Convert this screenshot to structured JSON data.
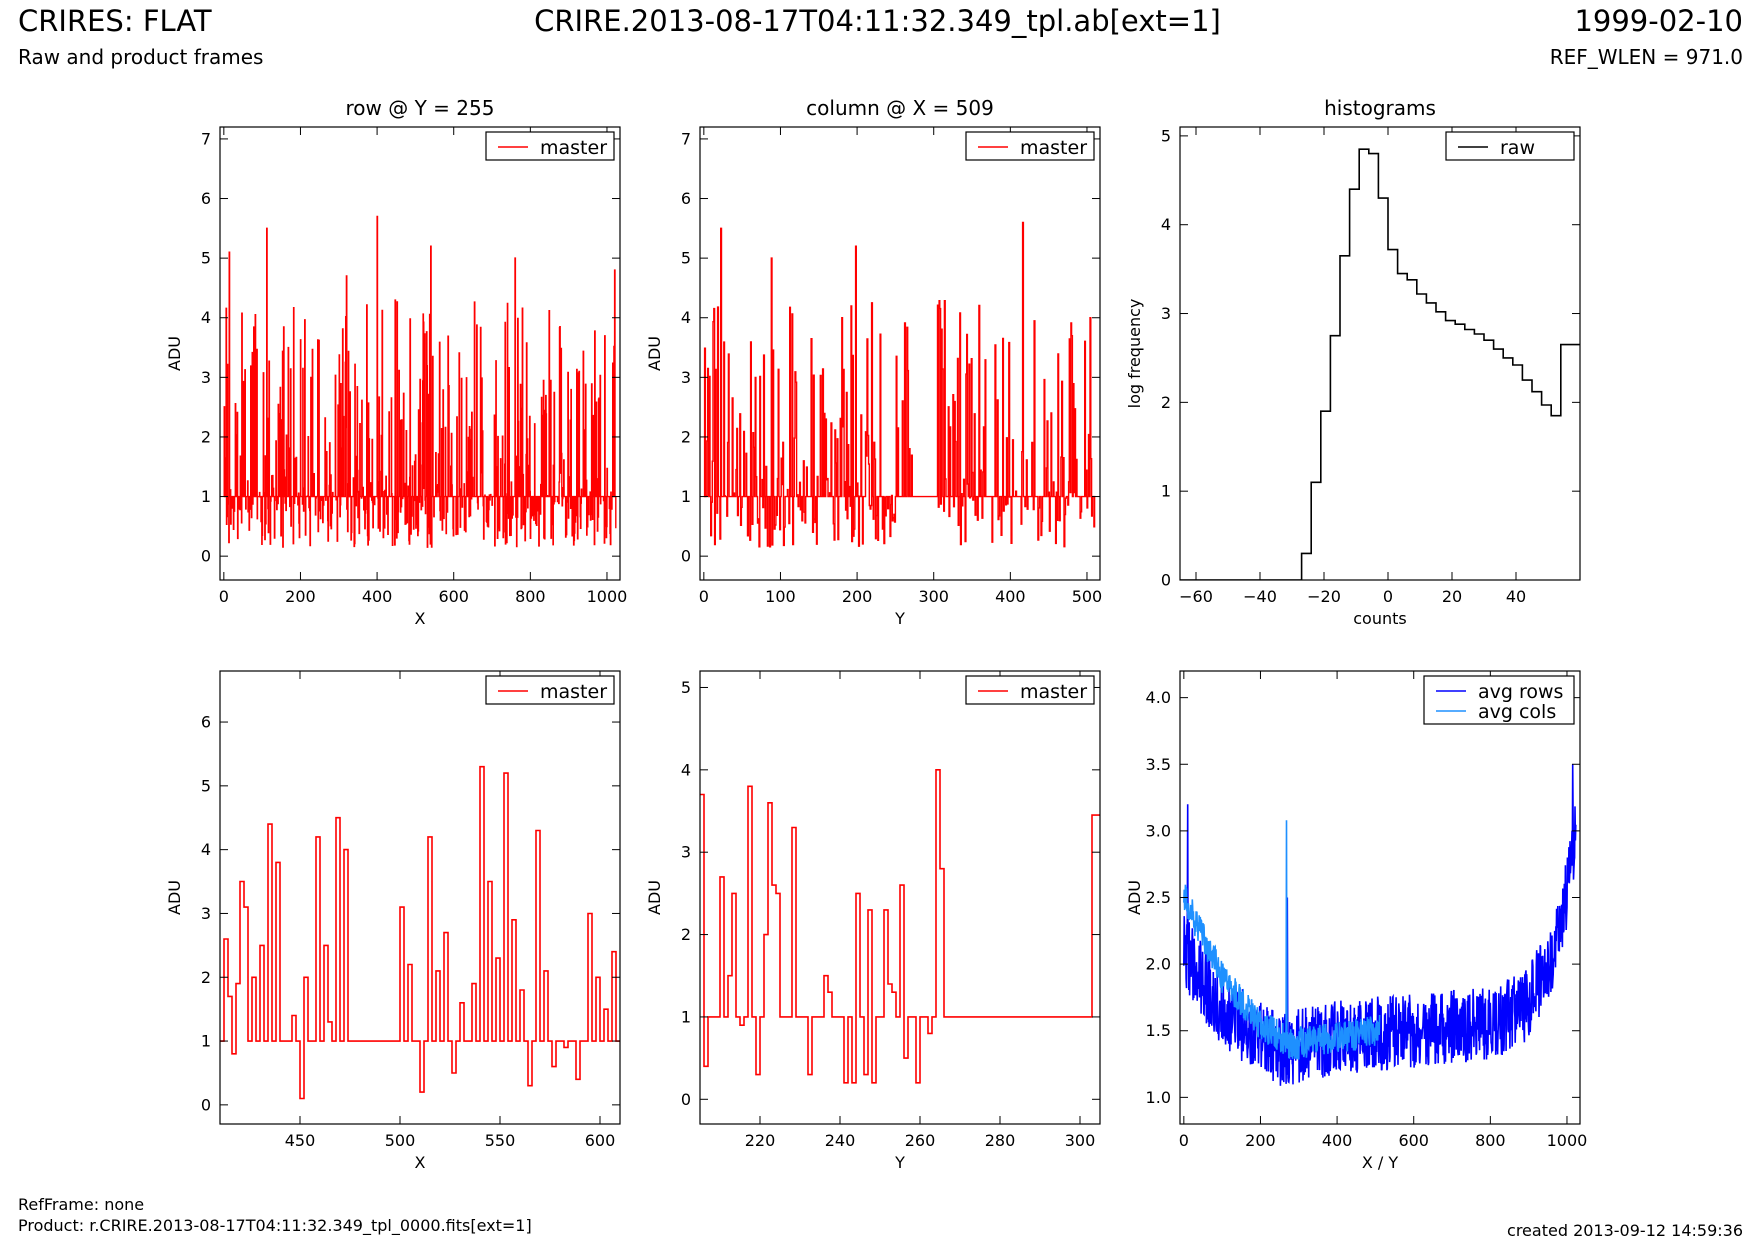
{
  "header": {
    "title_left": "CRIRES: FLAT",
    "subtitle_left": "Raw and product frames",
    "title_center": "CRIRE.2013-08-17T04:11:32.349_tpl.ab[ext=1]",
    "title_right": "1999-02-10",
    "subtitle_right": "REF_WLEN = 971.0"
  },
  "footer": {
    "refframe": "RefFrame: none",
    "product": "Product: r.CRIRE.2013-08-17T04:11:32.349_tpl_0000.fits[ext=1]",
    "created": "created 2013-09-12 14:59:36"
  },
  "colors": {
    "red": "#ff0000",
    "black": "#000000",
    "blue": "#0000ff",
    "lightblue": "#1e90ff"
  },
  "chart_data": [
    {
      "id": "row",
      "type": "line",
      "title": "row @ Y = 255",
      "xlabel": "X",
      "ylabel": "ADU",
      "xlim": [
        -10,
        1034
      ],
      "ylim": [
        -0.4,
        7.2
      ],
      "xticks": [
        0,
        200,
        400,
        600,
        800,
        1000
      ],
      "yticks": [
        0,
        1,
        2,
        3,
        4,
        5,
        6,
        7
      ],
      "legend": "top-right",
      "series": [
        {
          "name": "master",
          "color": "#ff0000",
          "style": "noise",
          "n": 1024,
          "x0": 0,
          "x1": 1023,
          "base": 1.0,
          "spikes": [
            [
              14,
              5.1
            ],
            [
              112,
              5.5
            ],
            [
              400,
              5.7
            ],
            [
              540,
              5.2
            ],
            [
              1020,
              4.8
            ],
            [
              760,
              5.0
            ],
            [
              320,
              4.7
            ]
          ]
        }
      ]
    },
    {
      "id": "column",
      "type": "line",
      "title": "column @ X = 509",
      "xlabel": "Y",
      "ylabel": "ADU",
      "xlim": [
        -5,
        517
      ],
      "ylim": [
        -0.4,
        7.2
      ],
      "xticks": [
        0,
        100,
        200,
        300,
        400,
        500
      ],
      "yticks": [
        0,
        1,
        2,
        3,
        4,
        5,
        6,
        7
      ],
      "legend": "top-right",
      "series": [
        {
          "name": "master",
          "color": "#ff0000",
          "style": "noise",
          "n": 512,
          "x0": 0,
          "x1": 511,
          "base": 1.0,
          "gaps": [
            [
              272,
              303
            ]
          ],
          "spikes": [
            [
              22,
              5.5
            ],
            [
              88,
              5.0
            ],
            [
              198,
              5.2
            ],
            [
              416,
              5.6
            ],
            [
              504,
              4.0
            ]
          ]
        }
      ]
    },
    {
      "id": "histograms",
      "type": "line",
      "title": "histograms",
      "xlabel": "counts",
      "ylabel": "log frequency",
      "xlim": [
        -65,
        60
      ],
      "ylim": [
        0,
        5.1
      ],
      "xticks": [
        -60,
        -40,
        -20,
        0,
        20,
        40
      ],
      "yticks": [
        0,
        1,
        2,
        3,
        4,
        5
      ],
      "legend": "top-right",
      "series": [
        {
          "name": "raw",
          "color": "#000000",
          "style": "step",
          "x": [
            -65,
            -27,
            -24,
            -21,
            -18,
            -15,
            -12,
            -9,
            -6,
            -3,
            0,
            3,
            6,
            9,
            12,
            15,
            18,
            21,
            24,
            27,
            30,
            33,
            36,
            39,
            42,
            45,
            48,
            51,
            54,
            57,
            60
          ],
          "y": [
            0,
            0.3,
            1.1,
            1.9,
            2.75,
            3.65,
            4.4,
            4.85,
            4.8,
            4.3,
            3.72,
            3.45,
            3.38,
            3.22,
            3.12,
            3.02,
            2.92,
            2.88,
            2.82,
            2.77,
            2.7,
            2.6,
            2.5,
            2.42,
            2.25,
            2.12,
            1.97,
            1.85,
            2.65,
            2.65,
            2.65
          ]
        }
      ]
    },
    {
      "id": "row-zoom",
      "type": "line",
      "title": "",
      "xlabel": "X",
      "ylabel": "ADU",
      "xlim": [
        410,
        610
      ],
      "ylim": [
        -0.3,
        6.8
      ],
      "xticks": [
        450,
        500,
        550,
        600
      ],
      "yticks": [
        0,
        1,
        2,
        3,
        4,
        5,
        6
      ],
      "legend": "top-right",
      "series": [
        {
          "name": "master",
          "color": "#ff0000",
          "style": "step",
          "x": [
            410,
            412,
            414,
            416,
            418,
            420,
            422,
            424,
            426,
            428,
            430,
            432,
            434,
            436,
            438,
            440,
            442,
            444,
            446,
            448,
            450,
            452,
            454,
            456,
            458,
            460,
            462,
            464,
            466,
            468,
            470,
            472,
            474,
            476,
            478,
            480,
            482,
            484,
            486,
            488,
            490,
            492,
            494,
            496,
            498,
            500,
            502,
            504,
            506,
            508,
            510,
            512,
            514,
            516,
            518,
            520,
            522,
            524,
            526,
            528,
            530,
            532,
            534,
            536,
            538,
            540,
            542,
            544,
            546,
            548,
            550,
            552,
            554,
            556,
            558,
            560,
            562,
            564,
            566,
            568,
            570,
            572,
            574,
            576,
            578,
            580,
            582,
            584,
            586,
            588,
            590,
            592,
            594,
            596,
            598,
            600,
            602,
            604,
            606,
            608
          ],
          "y": [
            1.0,
            2.6,
            1.7,
            0.8,
            1.9,
            3.5,
            3.1,
            1.0,
            2.0,
            1.0,
            2.5,
            1.0,
            4.4,
            1.0,
            3.8,
            1.0,
            1.0,
            1.0,
            1.4,
            1.0,
            0.1,
            2.0,
            1.0,
            1.0,
            4.2,
            1.0,
            2.5,
            1.3,
            1.0,
            4.5,
            1.0,
            4.0,
            1.0,
            1.0,
            1.0,
            1.0,
            1.0,
            1.0,
            1.0,
            1.0,
            1.0,
            1.0,
            1.0,
            1.0,
            1.0,
            3.1,
            1.0,
            2.2,
            1.0,
            1.0,
            0.2,
            1.0,
            4.2,
            1.0,
            2.1,
            1.0,
            2.7,
            1.0,
            0.5,
            1.0,
            1.6,
            1.0,
            1.0,
            1.9,
            1.0,
            5.3,
            1.0,
            3.5,
            1.0,
            2.3,
            1.0,
            5.2,
            1.0,
            2.9,
            1.0,
            1.8,
            1.0,
            0.3,
            1.0,
            4.3,
            1.0,
            2.1,
            1.0,
            0.6,
            1.0,
            1.0,
            0.9,
            1.0,
            1.0,
            0.4,
            1.0,
            1.0,
            3.0,
            1.0,
            2.0,
            1.0,
            1.5,
            1.0,
            2.4,
            1.0
          ]
        }
      ]
    },
    {
      "id": "column-zoom",
      "type": "line",
      "title": "",
      "xlabel": "Y",
      "ylabel": "ADU",
      "xlim": [
        205,
        305
      ],
      "ylim": [
        -0.3,
        5.2
      ],
      "xticks": [
        220,
        240,
        260,
        280,
        300
      ],
      "yticks": [
        0,
        1,
        2,
        3,
        4,
        5
      ],
      "legend": "top-right",
      "series": [
        {
          "name": "master",
          "color": "#ff0000",
          "style": "step",
          "x": [
            205,
            206,
            207,
            208,
            209,
            210,
            211,
            212,
            213,
            214,
            215,
            216,
            217,
            218,
            219,
            220,
            221,
            222,
            223,
            224,
            225,
            226,
            227,
            228,
            229,
            230,
            231,
            232,
            233,
            234,
            235,
            236,
            237,
            238,
            239,
            240,
            241,
            242,
            243,
            244,
            245,
            246,
            247,
            248,
            249,
            250,
            251,
            252,
            253,
            254,
            255,
            256,
            257,
            258,
            259,
            260,
            261,
            262,
            263,
            264,
            265,
            266,
            267,
            268,
            269,
            270,
            271,
            272,
            303,
            304
          ],
          "y": [
            3.7,
            0.4,
            1.0,
            1.0,
            1.0,
            2.7,
            1.0,
            1.5,
            2.5,
            1.0,
            0.9,
            1.0,
            3.8,
            1.0,
            0.3,
            1.0,
            2.0,
            3.6,
            2.6,
            2.5,
            1.0,
            1.0,
            1.0,
            3.3,
            1.0,
            1.0,
            1.0,
            0.3,
            1.0,
            1.0,
            1.0,
            1.5,
            1.3,
            1.0,
            1.0,
            1.0,
            0.2,
            1.0,
            0.2,
            2.5,
            1.0,
            0.3,
            2.3,
            0.2,
            1.0,
            1.0,
            2.3,
            1.4,
            1.3,
            1.0,
            2.6,
            0.5,
            1.0,
            1.0,
            0.2,
            1.0,
            1.0,
            0.8,
            1.0,
            4.0,
            2.8,
            1.0,
            1.0,
            1.0,
            1.0,
            1.0,
            1.0,
            1.0,
            3.45,
            3.45
          ]
        }
      ]
    },
    {
      "id": "averages",
      "type": "line",
      "title": "",
      "xlabel": "X / Y",
      "ylabel": "ADU",
      "xlim": [
        -10,
        1034
      ],
      "ylim": [
        0.8,
        4.2
      ],
      "xticks": [
        0,
        200,
        400,
        600,
        800,
        1000
      ],
      "yticks": [
        1.0,
        1.5,
        2.0,
        2.5,
        3.0,
        3.5,
        4.0
      ],
      "legend": "top-right",
      "series": [
        {
          "name": "avg rows",
          "color": "#0000ff",
          "style": "trend",
          "n": 1024,
          "x0": 0,
          "x1": 1023,
          "amp": 0.28,
          "knots": [
            [
              0,
              2.1
            ],
            [
              100,
              1.65
            ],
            [
              250,
              1.35
            ],
            [
              400,
              1.45
            ],
            [
              600,
              1.5
            ],
            [
              800,
              1.55
            ],
            [
              900,
              1.7
            ],
            [
              980,
              2.2
            ],
            [
              1023,
              3.0
            ]
          ],
          "spikes": [
            [
              10,
              3.2
            ],
            [
              270,
              2.5
            ],
            [
              1015,
              3.5
            ]
          ]
        },
        {
          "name": "avg cols",
          "color": "#1e90ff",
          "style": "trend",
          "n": 512,
          "x0": 0,
          "x1": 511,
          "amp": 0.12,
          "knots": [
            [
              0,
              2.5
            ],
            [
              100,
              1.9
            ],
            [
              200,
              1.55
            ],
            [
              280,
              1.4
            ],
            [
              400,
              1.45
            ],
            [
              511,
              1.5
            ]
          ],
          "spikes": [
            [
              268,
              3.08
            ]
          ]
        }
      ]
    }
  ]
}
